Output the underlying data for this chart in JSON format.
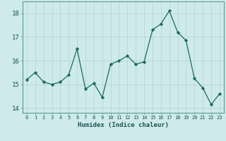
{
  "x": [
    0,
    1,
    2,
    3,
    4,
    5,
    6,
    7,
    8,
    9,
    10,
    11,
    12,
    13,
    14,
    15,
    16,
    17,
    18,
    19,
    20,
    21,
    22,
    23
  ],
  "y": [
    15.2,
    15.5,
    15.1,
    15.0,
    15.1,
    15.4,
    16.5,
    14.8,
    15.05,
    14.45,
    15.85,
    16.0,
    16.2,
    15.85,
    15.95,
    17.3,
    17.55,
    18.1,
    17.2,
    16.85,
    15.25,
    14.85,
    14.15,
    14.6
  ],
  "line_color": "#1a6b5a",
  "marker_color": "#1a6b5a",
  "bg_color": "#ceeaea",
  "grid_color": "#b8d8d8",
  "xlabel": "Humidex (Indice chaleur)",
  "ylim": [
    13.8,
    18.5
  ],
  "xlim": [
    -0.5,
    23.5
  ],
  "yticks": [
    14,
    15,
    16,
    17,
    18
  ],
  "xticks": [
    0,
    1,
    2,
    3,
    4,
    5,
    6,
    7,
    8,
    9,
    10,
    11,
    12,
    13,
    14,
    15,
    16,
    17,
    18,
    19,
    20,
    21,
    22,
    23
  ],
  "tick_label_color": "#1a5555",
  "xlabel_color": "#1a5555"
}
